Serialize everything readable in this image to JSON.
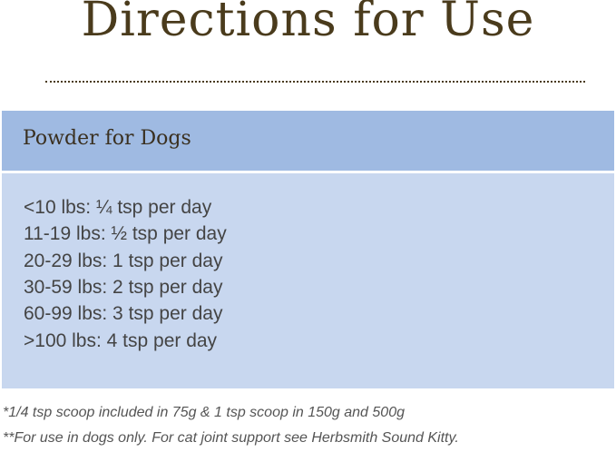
{
  "title": "Directions for Use",
  "section": {
    "header": "Powder for Dogs",
    "rows": [
      "<10 lbs: ¼ tsp per day",
      "11-19 lbs: ½ tsp per day",
      "20-29 lbs: 1 tsp per day",
      "30-59 lbs: 2 tsp per day",
      "60-99 lbs: 3 tsp per day",
      ">100 lbs: 4 tsp per day"
    ]
  },
  "footnotes": [
    "*1/4 tsp scoop included in 75g & 1 tsp scoop in 150g and 500g",
    "**For use in dogs only.  For cat joint support see Herbsmith Sound Kitty."
  ],
  "colors": {
    "title": "#4a3b1c",
    "header_band": "#9fbae2",
    "body_band": "#c8d7ef"
  }
}
